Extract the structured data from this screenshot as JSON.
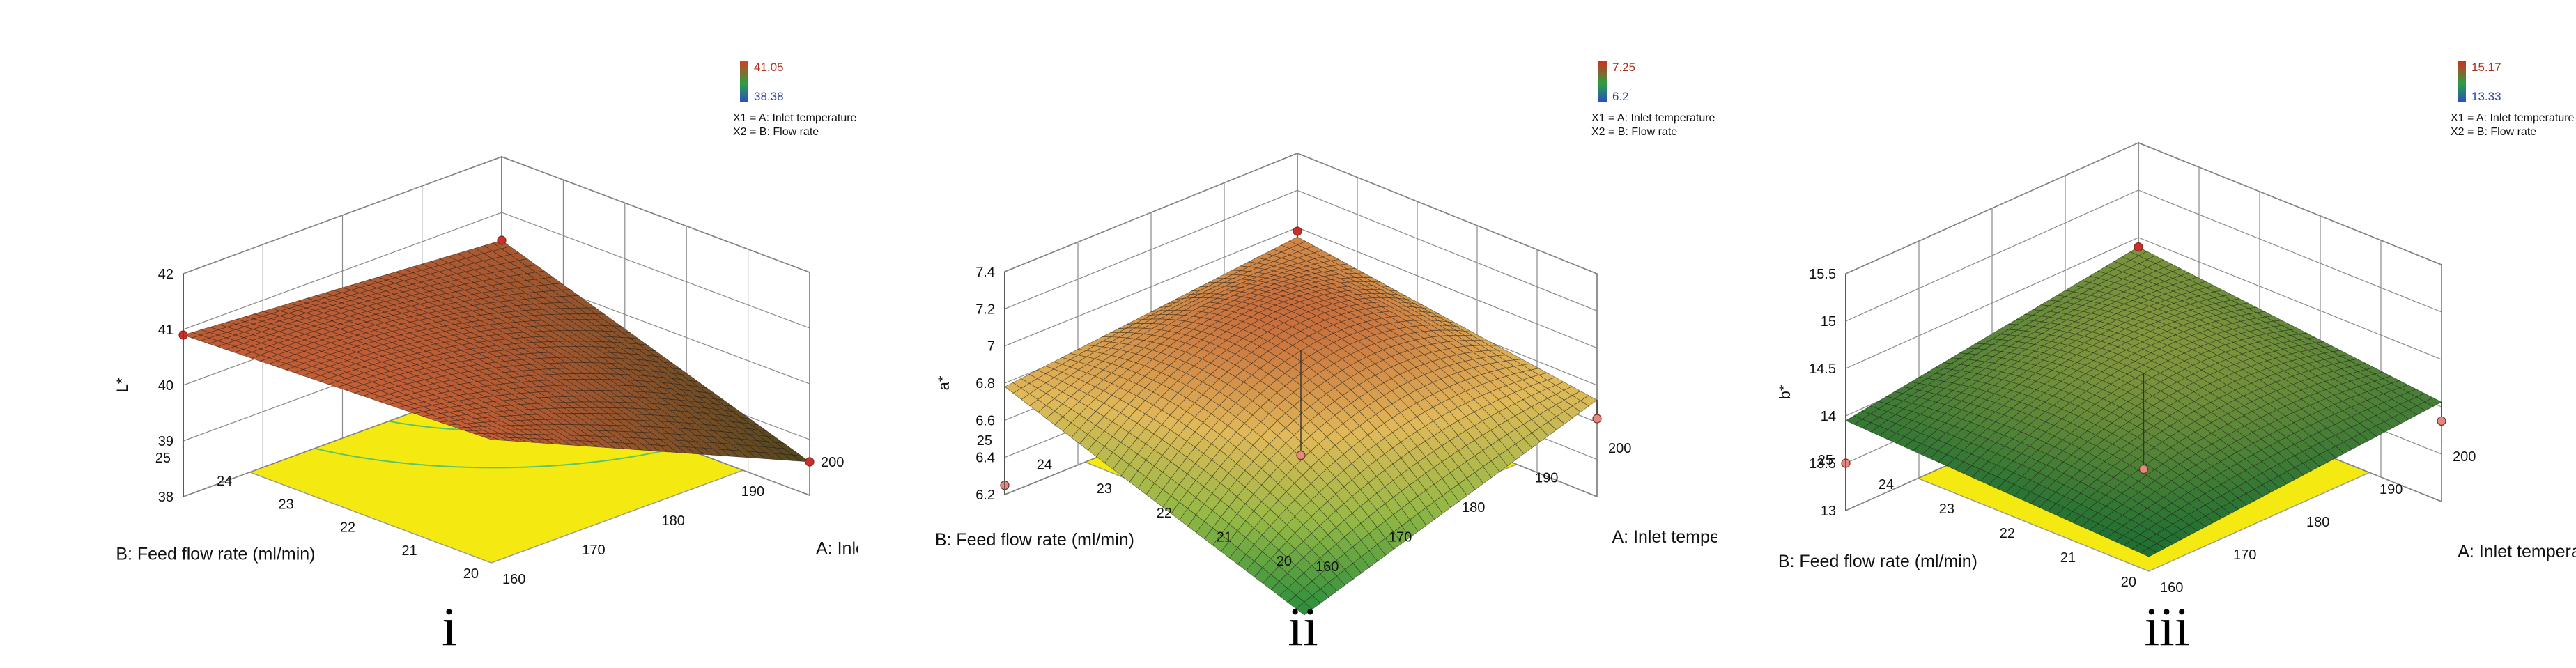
{
  "chart_data": [
    {
      "type": "surface3d",
      "caption": "i",
      "zlabel": "L*",
      "xlabel": "A: Inlet temperature (Celcius)",
      "ylabel": "B: Feed flow rate (ml/min)",
      "x_ticks": [
        "160",
        "170",
        "180",
        "190",
        "200"
      ],
      "y_ticks": [
        "20",
        "21",
        "22",
        "23",
        "24",
        "25"
      ],
      "z_ticks": [
        "38",
        "39",
        "40",
        "41",
        "42"
      ],
      "zlim": [
        38,
        42
      ],
      "legend": {
        "max": "41.05",
        "min": "38.38",
        "x1": "X1 = A: Inlet temperature",
        "x2": "X2 = B: Flow rate"
      },
      "surface": {
        "model": "quadratic",
        "corners": {
          "x160_y25": 40.9,
          "x200_y25": 40.5,
          "x160_y20": 41.1,
          "x200_y20": 38.6
        },
        "center": 40.6
      },
      "design_points": [
        {
          "x": 160,
          "y": 25,
          "z": 40.9,
          "above": true
        },
        {
          "x": 200,
          "y": 25,
          "z": 40.5,
          "above": true
        },
        {
          "x": 200,
          "y": 20,
          "z": 38.6,
          "above": true
        }
      ]
    },
    {
      "type": "surface3d",
      "caption": "ii",
      "zlabel": "a*",
      "xlabel": "A: Inlet temperature (Celcius)",
      "ylabel": "B: Feed flow rate (ml/min)",
      "x_ticks": [
        "160",
        "170",
        "180",
        "190",
        "200"
      ],
      "y_ticks": [
        "20",
        "21",
        "22",
        "23",
        "24",
        "25"
      ],
      "z_ticks": [
        "6.2",
        "6.4",
        "6.6",
        "6.8",
        "7",
        "7.2",
        "7.4"
      ],
      "zlim": [
        6.2,
        7.4
      ],
      "legend": {
        "max": "7.25",
        "min": "6.2",
        "x1": "X1 = A: Inlet temperature",
        "x2": "X2 = B: Flow rate"
      },
      "surface": {
        "model": "quadratic",
        "corners": {
          "x160_y25": 6.78,
          "x200_y25": 6.95,
          "x160_y20": 6.2,
          "x200_y20": 6.72
        },
        "center": 6.98
      },
      "design_points": [
        {
          "x": 160,
          "y": 25,
          "z": 6.25,
          "above": false
        },
        {
          "x": 200,
          "y": 25,
          "z": 6.98,
          "above": true
        },
        {
          "x": 200,
          "y": 20,
          "z": 6.62,
          "above": false
        }
      ]
    },
    {
      "type": "surface3d",
      "caption": "iii",
      "zlabel": "b*",
      "xlabel": "A: Inlet temperature (Celcius)",
      "ylabel": "B: Feed flow rate (ml/min)",
      "x_ticks": [
        "160",
        "170",
        "180",
        "190",
        "200"
      ],
      "y_ticks": [
        "20",
        "21",
        "22",
        "23",
        "24",
        "25"
      ],
      "z_ticks": [
        "13",
        "13.5",
        "14",
        "14.5",
        "15",
        "15.5"
      ],
      "zlim": [
        13,
        15.5
      ],
      "legend": {
        "max": "15.17",
        "min": "13.33",
        "x1": "X1 = A: Inlet temperature",
        "x2": "X2 = B: Flow rate"
      },
      "surface": {
        "model": "quadratic",
        "corners": {
          "x160_y25": 13.95,
          "x200_y25": 14.4,
          "x160_y20": 13.8,
          "x200_y20": 14.05
        },
        "center": 14.4
      },
      "design_points": [
        {
          "x": 160,
          "y": 25,
          "z": 13.5,
          "above": false
        },
        {
          "x": 200,
          "y": 25,
          "z": 14.4,
          "above": true
        },
        {
          "x": 200,
          "y": 20,
          "z": 13.85,
          "above": false
        }
      ]
    }
  ]
}
